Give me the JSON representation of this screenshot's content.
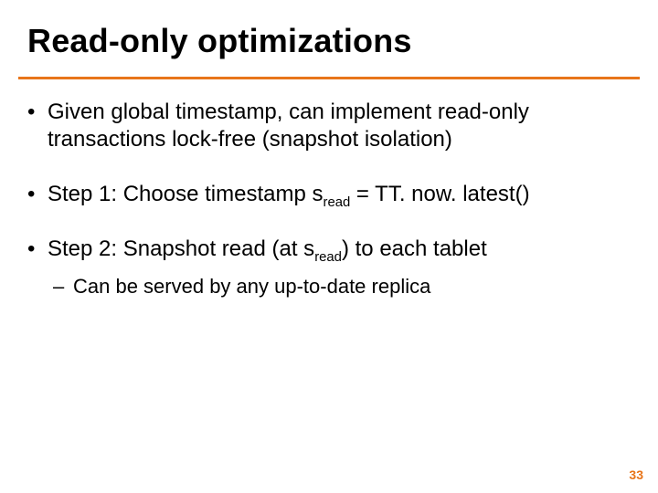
{
  "title": "Read-only optimizations",
  "underline_color": "#e8751a",
  "page_number_color": "#e8751a",
  "bullets": {
    "b0": "Given global timestamp, can implement read-only transactions lock-free (snapshot isolation)",
    "b1_prefix": "Step 1:  Choose timestamp s",
    "b1_sub": "read",
    "b1_suffix": " = TT. now. latest()",
    "b2_prefix": "Step 2: Snapshot read (at s",
    "b2_sub": "read",
    "b2_suffix": ") to each tablet",
    "sub0": "Can be served by any up-to-date replica"
  },
  "page_number": "33",
  "fonts": {
    "title_size_pt": 36,
    "body_size_pt": 24,
    "sub_bullet_size_pt": 22,
    "page_num_size_pt": 14,
    "family": "Arial"
  },
  "colors": {
    "background": "#ffffff",
    "text": "#000000"
  }
}
